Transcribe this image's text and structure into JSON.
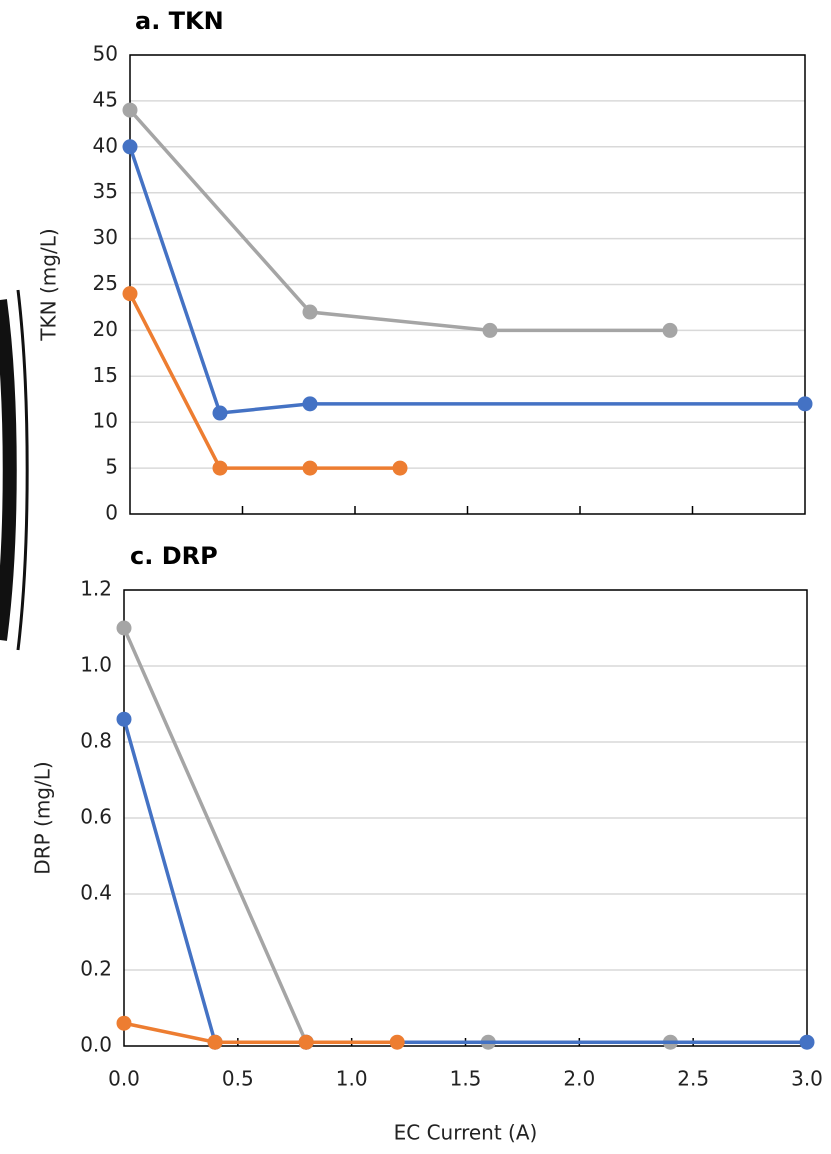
{
  "chart_data": [
    {
      "type": "line",
      "title": "a. TKN",
      "y_label": "TKN (mg/L)",
      "xlim": [
        0,
        3
      ],
      "ylim": [
        0,
        50
      ],
      "yticks": [
        0,
        5,
        10,
        15,
        20,
        25,
        30,
        35,
        40,
        45,
        50
      ],
      "grid": true,
      "series": [
        {
          "color": "#a5a5a5",
          "x": [
            0,
            0.8,
            1.6,
            2.4
          ],
          "values": [
            44,
            22,
            20,
            20
          ]
        },
        {
          "color": "#4472c4",
          "x": [
            0,
            0.4,
            0.8,
            3.0
          ],
          "values": [
            40,
            11,
            12,
            12
          ]
        },
        {
          "color": "#ed7d31",
          "x": [
            0,
            0.4,
            0.8,
            1.2
          ],
          "values": [
            24,
            5,
            5,
            5
          ]
        }
      ]
    },
    {
      "type": "line",
      "title": "c. DRP",
      "y_label": "DRP (mg/L)",
      "x_label": "EC Current (A)",
      "xlim": [
        0,
        3
      ],
      "ylim": [
        0,
        1.2
      ],
      "xticks": [
        {
          "value": 0,
          "label": "0.0"
        },
        0.5,
        {
          "value": 1,
          "label": "1.0"
        },
        1.5,
        {
          "value": 2,
          "label": "2.0"
        },
        2.5,
        {
          "value": 3,
          "label": "3.0"
        }
      ],
      "yticks": [
        {
          "value": 0,
          "label": "0.0"
        },
        0.2,
        0.4,
        0.6,
        0.8,
        {
          "value": 1,
          "label": "1.0"
        },
        1.2
      ],
      "grid": true,
      "series": [
        {
          "color": "#a5a5a5",
          "x": [
            0,
            0.8,
            1.6,
            2.4
          ],
          "values": [
            1.1,
            0.01,
            0.01,
            0.01
          ]
        },
        {
          "color": "#4472c4",
          "x": [
            0,
            0.4,
            0.8,
            3.0
          ],
          "values": [
            0.86,
            0.01,
            0.01,
            0.01
          ]
        },
        {
          "color": "#ed7d31",
          "x": [
            0,
            0.4,
            0.8,
            1.2
          ],
          "values": [
            0.06,
            0.01,
            0.01,
            0.01
          ]
        }
      ]
    }
  ]
}
